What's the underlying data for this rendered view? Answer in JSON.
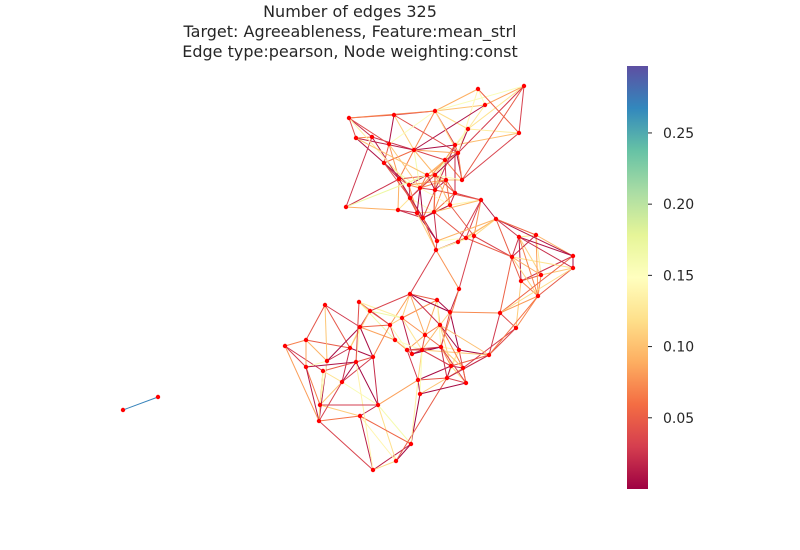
{
  "title": {
    "line1": "Number of edges 325",
    "line2": "Target: Agreeableness, Feature:mean_strl",
    "line3": "Edge type:pearson, Node weighting:const"
  },
  "colorbar": {
    "colormap": "Spectral",
    "vmin": 0.0,
    "vmax": 0.297,
    "ticks": [
      {
        "value": 0.05,
        "label": "0.05"
      },
      {
        "value": 0.1,
        "label": "0.10"
      },
      {
        "value": 0.15,
        "label": "0.15"
      },
      {
        "value": 0.2,
        "label": "0.20"
      },
      {
        "value": 0.25,
        "label": "0.25"
      }
    ]
  },
  "style": {
    "node_color": "#ff0000",
    "background": "#ffffff"
  }
}
